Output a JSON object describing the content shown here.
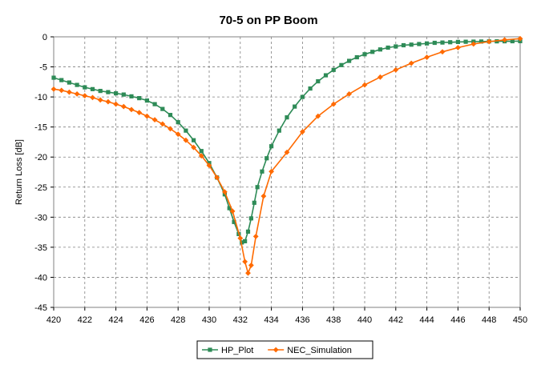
{
  "chart_data": {
    "type": "line",
    "title": "70-5 on PP Boom",
    "xlabel": "",
    "ylabel": "Return Loss [dB]",
    "xlim": [
      420,
      450
    ],
    "ylim": [
      -45,
      0
    ],
    "xticks": [
      420,
      422,
      424,
      426,
      428,
      430,
      432,
      434,
      436,
      438,
      440,
      442,
      444,
      446,
      448,
      450
    ],
    "yticks": [
      0,
      -5,
      -10,
      -15,
      -20,
      -25,
      -30,
      -35,
      -40,
      -45
    ],
    "grid": true,
    "legend_position": "bottom",
    "series": [
      {
        "name": "HP_Plot",
        "color": "#2e8b57",
        "marker": "square",
        "x": [
          420.0,
          420.5,
          421.0,
          421.5,
          422.0,
          422.5,
          423.0,
          423.5,
          424.0,
          424.5,
          425.0,
          425.5,
          426.0,
          426.5,
          427.0,
          427.5,
          428.0,
          428.5,
          429.0,
          429.5,
          430.0,
          430.5,
          431.0,
          431.3,
          431.6,
          431.9,
          432.1,
          432.3,
          432.5,
          432.7,
          432.9,
          433.1,
          433.4,
          433.7,
          434.0,
          434.5,
          435.0,
          435.5,
          436.0,
          436.5,
          437.0,
          437.5,
          438.0,
          438.5,
          439.0,
          439.5,
          440.0,
          440.5,
          441.0,
          441.5,
          442.0,
          442.5,
          443.0,
          443.5,
          444.0,
          444.5,
          445.0,
          445.5,
          446.0,
          446.5,
          447.0,
          447.5,
          448.0,
          448.5,
          449.0,
          449.5,
          450.0
        ],
        "y": [
          -6.8,
          -7.2,
          -7.6,
          -8.0,
          -8.4,
          -8.7,
          -9.0,
          -9.2,
          -9.4,
          -9.6,
          -9.9,
          -10.2,
          -10.6,
          -11.2,
          -12.0,
          -13.0,
          -14.2,
          -15.6,
          -17.2,
          -19.0,
          -21.0,
          -23.4,
          -26.2,
          -28.5,
          -30.8,
          -32.8,
          -34.2,
          -34.0,
          -32.4,
          -30.2,
          -27.6,
          -25.0,
          -22.4,
          -20.2,
          -18.2,
          -15.6,
          -13.4,
          -11.6,
          -10.0,
          -8.6,
          -7.4,
          -6.4,
          -5.5,
          -4.7,
          -4.0,
          -3.4,
          -2.9,
          -2.5,
          -2.1,
          -1.8,
          -1.6,
          -1.4,
          -1.3,
          -1.2,
          -1.1,
          -1.0,
          -0.95,
          -0.9,
          -0.85,
          -0.82,
          -0.8,
          -0.78,
          -0.76,
          -0.75,
          -0.74,
          -0.73,
          -0.72
        ]
      },
      {
        "name": "NEC_Simulation",
        "color": "#ff6a00",
        "marker": "diamond",
        "x": [
          420.0,
          420.5,
          421.0,
          421.5,
          422.0,
          422.5,
          423.0,
          423.5,
          424.0,
          424.5,
          425.0,
          425.5,
          426.0,
          426.5,
          427.0,
          427.5,
          428.0,
          428.5,
          429.0,
          429.5,
          430.0,
          430.5,
          431.0,
          431.5,
          432.0,
          432.3,
          432.5,
          432.7,
          433.0,
          433.5,
          434.0,
          435.0,
          436.0,
          437.0,
          438.0,
          439.0,
          440.0,
          441.0,
          442.0,
          443.0,
          444.0,
          445.0,
          446.0,
          447.0,
          448.0,
          449.0,
          450.0
        ],
        "y": [
          -8.7,
          -8.9,
          -9.2,
          -9.5,
          -9.8,
          -10.1,
          -10.5,
          -10.8,
          -11.2,
          -11.6,
          -12.1,
          -12.6,
          -13.2,
          -13.8,
          -14.5,
          -15.3,
          -16.2,
          -17.2,
          -18.4,
          -19.8,
          -21.4,
          -23.4,
          -25.8,
          -29.0,
          -33.5,
          -37.4,
          -39.3,
          -38.0,
          -33.2,
          -26.5,
          -22.4,
          -19.2,
          -15.8,
          -13.2,
          -11.2,
          -9.5,
          -8.0,
          -6.7,
          -5.5,
          -4.4,
          -3.4,
          -2.5,
          -1.8,
          -1.2,
          -0.8,
          -0.5,
          -0.3
        ]
      }
    ]
  }
}
